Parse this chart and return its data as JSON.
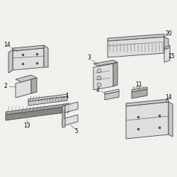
{
  "bg_color": "#f0f0ec",
  "fig_size": [
    2.5,
    2.5
  ],
  "dpi": 100,
  "line_color": "#444444",
  "label_fontsize": 5.5
}
